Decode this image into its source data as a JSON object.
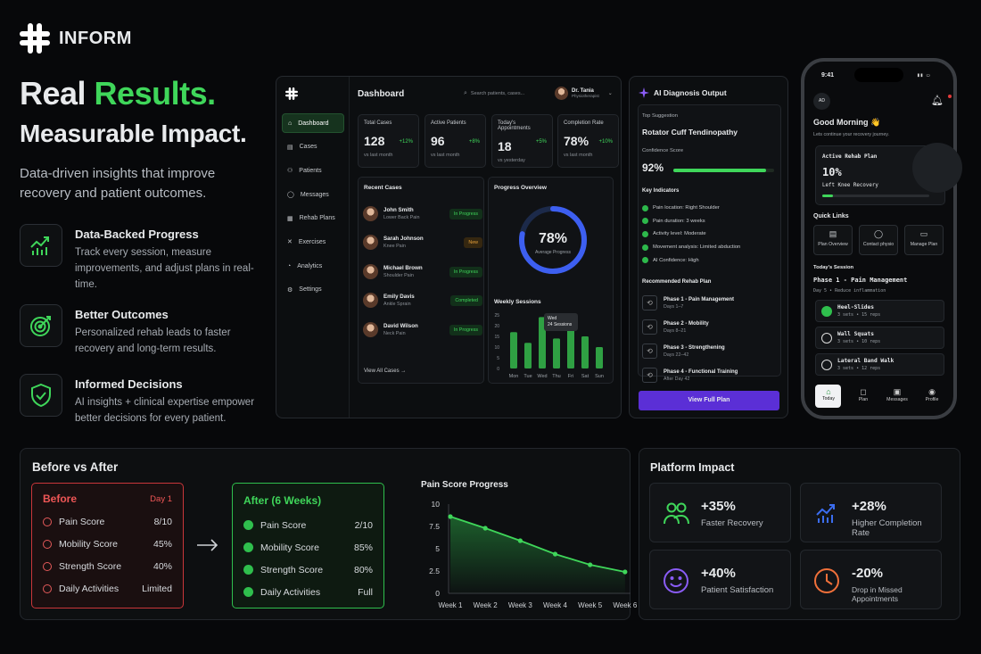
{
  "brand": {
    "name": "INFORM"
  },
  "hero": {
    "title_white": "Real ",
    "title_green": "Results.",
    "subtitle": "Measurable Impact.",
    "description": "Data-driven insights that improve recovery and patient outcomes."
  },
  "features": [
    {
      "title": "Data-Backed Progress",
      "desc": "Track every session, measure improvements, and adjust plans in real-time.",
      "icon": "chart-up-icon"
    },
    {
      "title": "Better Outcomes",
      "desc": "Personalized rehab leads to faster recovery and long-term results.",
      "icon": "target-icon"
    },
    {
      "title": "Informed Decisions",
      "desc": "AI insights + clinical expertise empower better decisions for every patient.",
      "icon": "shield-check-icon"
    }
  ],
  "dashboard": {
    "title": "Dashboard",
    "search_placeholder": "Search patients, cases...",
    "user_name": "Dr. Tania",
    "user_role": "Physiotherapist",
    "nav": [
      "Dashboard",
      "Cases",
      "Patients",
      "Messages",
      "Rehab Plans",
      "Exercises",
      "Analytics",
      "Settings"
    ],
    "stats": [
      {
        "label": "Total Cases",
        "value": "128",
        "delta": "+12%",
        "sub": "vs last month"
      },
      {
        "label": "Active Patients",
        "value": "96",
        "delta": "+8%",
        "sub": "vs last month"
      },
      {
        "label": "Today's Appointments",
        "value": "18",
        "delta": "+5%",
        "sub": "vs yesterday"
      },
      {
        "label": "Completion Rate",
        "value": "78%",
        "delta": "+10%",
        "sub": "vs last month"
      }
    ],
    "recent_title": "Recent Cases",
    "cases": [
      {
        "name": "John Smith",
        "cond": "Lower Back Pain",
        "status": "In Progress"
      },
      {
        "name": "Sarah Johnson",
        "cond": "Knee Pain",
        "status": "New"
      },
      {
        "name": "Michael Brown",
        "cond": "Shoulder Pain",
        "status": "In Progress"
      },
      {
        "name": "Emily Davis",
        "cond": "Ankle Sprain",
        "status": "Completed"
      },
      {
        "name": "David Wilson",
        "cond": "Neck Pain",
        "status": "In Progress"
      }
    ],
    "view_all": "View All Cases →",
    "progress_title": "Progress Overview",
    "progress_value": "78%",
    "progress_label": "Average Progress",
    "progress_fraction": 0.78,
    "weekly_title": "Weekly Sessions",
    "weekly_tooltip_day": "Wed",
    "weekly_tooltip_val": "24 Sessions",
    "weekly_days": [
      "Mon",
      "Tue",
      "Wed",
      "Thu",
      "Fri",
      "Sat",
      "Sun"
    ],
    "weekly_values": [
      17,
      12,
      24,
      14,
      18,
      15,
      10
    ],
    "weekly_ticks": [
      "25",
      "20",
      "15",
      "10",
      "5",
      "0"
    ]
  },
  "ai": {
    "title": "AI Diagnosis Output",
    "top_label": "Top Suggestion",
    "top_value": "Rotator Cuff Tendinopathy",
    "conf_label": "Confidence Score",
    "conf_value": "92%",
    "conf_fraction": 0.92,
    "ind_title": "Key Indicators",
    "indicators": [
      "Pain location: Right Shoulder",
      "Pain duration: 3 weeks",
      "Activity level: Moderate",
      "Movement analysis: Limited abduction",
      "AI Confidence: High"
    ],
    "plan_title": "Recommended Rehab Plan",
    "phases": [
      {
        "t": "Phase 1 - Pain Management",
        "s": "Days 1–7"
      },
      {
        "t": "Phase 2 - Mobility",
        "s": "Days 8–21"
      },
      {
        "t": "Phase 3 - Strengthening",
        "s": "Days 22–42"
      },
      {
        "t": "Phase 4 - Functional Training",
        "s": "After Day 42"
      }
    ],
    "button": "View Full Plan"
  },
  "phone": {
    "time": "9:41",
    "avatar": "AD",
    "greeting": "Good Morning 👋",
    "greeting_sub": "Lets continue your recovery journey.",
    "plan_label": "Active Rehab Plan",
    "plan_pct": "10%",
    "plan_fraction": 0.1,
    "plan_name": "Left Knee Recovery",
    "quick_title": "Quick Links",
    "quick": [
      "Plan Overview",
      "Contact physio",
      "Manage Plan"
    ],
    "session_title": "Today's Session",
    "session_phase": "Phase 1 - Pain Management",
    "session_sub": "Day 5 • Reduce inflammation",
    "exercises": [
      {
        "n": "Heel-Slides",
        "s": "3 sets • 15 reps"
      },
      {
        "n": "Wall Squats",
        "s": "3 sets • 10 reps"
      },
      {
        "n": "Lateral Band Walk",
        "s": "3 sets • 12 reps"
      }
    ],
    "tabs": [
      "Today",
      "Plan",
      "Messages",
      "Profile"
    ]
  },
  "before_after": {
    "title": "Before vs After",
    "before_title": "Before",
    "before_tag": "Day 1",
    "before": [
      [
        "Pain Score",
        "8/10"
      ],
      [
        "Mobility Score",
        "45%"
      ],
      [
        "Strength Score",
        "40%"
      ],
      [
        "Daily Activities",
        "Limited"
      ]
    ],
    "after_title": "After (6 Weeks)",
    "after": [
      [
        "Pain Score",
        "2/10"
      ],
      [
        "Mobility Score",
        "85%"
      ],
      [
        "Strength Score",
        "80%"
      ],
      [
        "Daily Activities",
        "Full"
      ]
    ]
  },
  "chart_data": {
    "type": "area",
    "title": "Pain Score Progress",
    "categories": [
      "Week 1",
      "Week 2",
      "Week 3",
      "Week 4",
      "Week 5",
      "Week 6"
    ],
    "values": [
      8.6,
      7.3,
      5.9,
      4.4,
      3.2,
      2.4
    ],
    "ylim": [
      0,
      10
    ],
    "yticks": [
      "10",
      "7.5",
      "5",
      "2.5",
      "0"
    ]
  },
  "impact": {
    "title": "Platform Impact",
    "items": [
      {
        "value": "+35%",
        "label": "Faster Recovery",
        "color": "#3fd65a"
      },
      {
        "value": "+28%",
        "label": "Higher Completion Rate",
        "color": "#3b6df0"
      },
      {
        "value": "+40%",
        "label": "Patient Satisfaction",
        "color": "#8a5cf5"
      },
      {
        "value": "-20%",
        "label": "Drop in Missed Appointments",
        "color": "#f0703a"
      }
    ]
  }
}
